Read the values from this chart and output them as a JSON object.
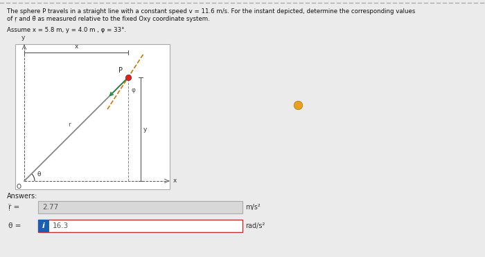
{
  "title_line1": "The sphere P travels in a straight line with a constant speed v = 11.6 m/s. For the instant depicted, determine the corresponding values",
  "title_line2": "of ṛ and θ̈ as measured relative to the fixed Oxy coordinate system.",
  "assume_text": "Assume x = 5.8 m, y = 4.0 m , φ = 33°.",
  "answers_label": "Answers:",
  "r_ddot_value": "2.77",
  "r_ddot_unit": "m/s²",
  "theta_ddot_value": "16.3",
  "theta_ddot_unit": "rad/s²",
  "bg_color": "#ebebeb",
  "white": "#ffffff",
  "gray_box": "#d8d8d8",
  "box1_border": "#aaaaaa",
  "box2_border": "#c03030",
  "info_blue": "#1a5fb4",
  "orange_dot_color": "#e8a020",
  "diagram_frame": "#aaaaaa"
}
